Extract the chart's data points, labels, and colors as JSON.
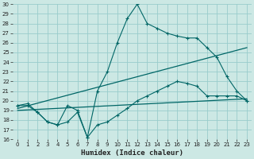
{
  "xlabel": "Humidex (Indice chaleur)",
  "background_color": "#cce8e4",
  "grid_color": "#99cccc",
  "line_color": "#006666",
  "xlim": [
    -0.5,
    23.5
  ],
  "ylim": [
    16,
    30
  ],
  "xticks": [
    0,
    1,
    2,
    3,
    4,
    5,
    6,
    7,
    8,
    9,
    10,
    11,
    12,
    13,
    14,
    15,
    16,
    17,
    18,
    19,
    20,
    21,
    22,
    23
  ],
  "yticks": [
    16,
    17,
    18,
    19,
    20,
    21,
    22,
    23,
    24,
    25,
    26,
    27,
    28,
    29,
    30
  ],
  "line1_x": [
    0,
    1,
    2,
    3,
    4,
    5,
    6,
    7,
    8,
    9,
    10,
    11,
    12,
    13,
    14,
    15,
    16,
    17,
    18,
    19,
    20,
    21,
    22,
    23
  ],
  "line1_y": [
    19.5,
    19.5,
    18.8,
    17.8,
    17.5,
    19.5,
    19.0,
    16.2,
    21.0,
    23.0,
    26.0,
    28.5,
    30.0,
    28.0,
    27.5,
    27.0,
    26.7,
    26.5,
    26.5,
    25.5,
    24.5,
    22.5,
    21.0,
    20.0
  ],
  "line2_x": [
    0,
    1,
    2,
    3,
    4,
    5,
    6,
    7,
    8,
    9,
    10,
    11,
    12,
    13,
    14,
    15,
    16,
    17,
    18,
    19,
    20,
    21,
    22,
    23
  ],
  "line2_y": [
    19.5,
    19.7,
    18.8,
    17.8,
    17.5,
    17.8,
    18.8,
    16.2,
    17.5,
    17.8,
    18.5,
    19.2,
    20.0,
    20.5,
    21.0,
    21.5,
    22.0,
    21.8,
    21.5,
    20.5,
    20.5,
    20.5,
    20.5,
    20.0
  ],
  "line3_x": [
    0,
    23
  ],
  "line3_y": [
    19.2,
    25.5
  ],
  "line4_x": [
    0,
    23
  ],
  "line4_y": [
    19.0,
    20.2
  ]
}
